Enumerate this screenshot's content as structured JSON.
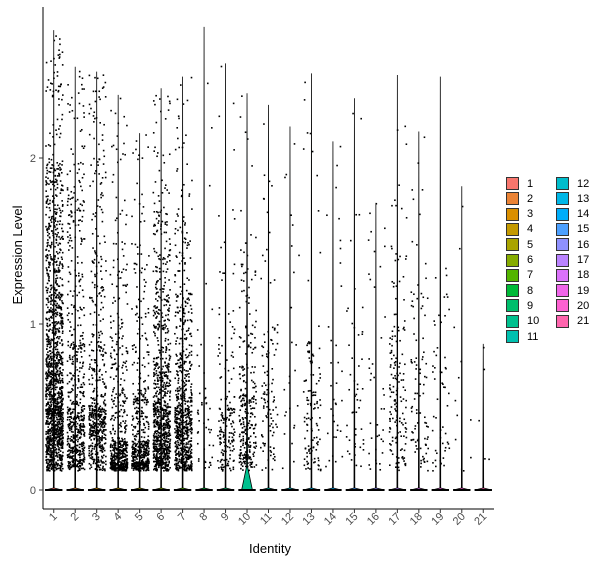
{
  "chart_data": {
    "type": "violin",
    "title": "",
    "xlabel": "Identity",
    "ylabel": "Expression Level",
    "ylim": [
      -0.12,
      2.85
    ],
    "yticks": [
      0,
      1,
      2
    ],
    "categories": [
      "1",
      "2",
      "3",
      "4",
      "5",
      "6",
      "7",
      "8",
      "9",
      "10",
      "11",
      "12",
      "13",
      "14",
      "15",
      "16",
      "17",
      "18",
      "19",
      "20",
      "21"
    ],
    "colors": [
      "#F8766D",
      "#EB8335",
      "#DA8F00",
      "#C49A00",
      "#A9A400",
      "#86AC00",
      "#53B400",
      "#00BA38",
      "#00BE6C",
      "#00C08E",
      "#00C0AF",
      "#00BDCC",
      "#00B7E7",
      "#00ADFA",
      "#4CA0FF",
      "#8F91FF",
      "#BA83FF",
      "#DB72FB",
      "#F066EA",
      "#FD61D1",
      "#FF65AE"
    ],
    "series": [
      {
        "category": "1",
        "max": 2.77,
        "density": [
          [
            0.25,
            0.4
          ],
          [
            0.5,
            1.0
          ],
          [
            0.8,
            0.9
          ],
          [
            1.2,
            0.55
          ],
          [
            1.6,
            0.35
          ],
          [
            2.0,
            0.3
          ],
          [
            2.5,
            0.15
          ]
        ],
        "n_dots": 1500
      },
      {
        "category": "2",
        "max": 2.55,
        "density": [
          [
            0.25,
            0.5
          ],
          [
            0.5,
            0.8
          ],
          [
            0.9,
            0.5
          ],
          [
            1.5,
            0.3
          ],
          [
            2.0,
            0.25
          ],
          [
            2.4,
            0.1
          ]
        ],
        "n_dots": 600
      },
      {
        "category": "3",
        "max": 2.52,
        "density": [
          [
            0.3,
            0.5
          ],
          [
            0.5,
            0.8
          ],
          [
            0.9,
            0.5
          ],
          [
            1.4,
            0.3
          ],
          [
            2.0,
            0.25
          ],
          [
            2.4,
            0.15
          ]
        ],
        "n_dots": 550
      },
      {
        "category": "4",
        "max": 2.38,
        "density": [
          [
            0.15,
            0.6
          ],
          [
            0.3,
            1.0
          ],
          [
            0.6,
            0.5
          ],
          [
            1.0,
            0.3
          ],
          [
            1.5,
            0.2
          ],
          [
            2.2,
            0.1
          ]
        ],
        "n_dots": 550
      },
      {
        "category": "5",
        "max": 2.15,
        "density": [
          [
            0.15,
            0.6
          ],
          [
            0.3,
            1.0
          ],
          [
            0.6,
            0.55
          ],
          [
            1.0,
            0.35
          ],
          [
            1.5,
            0.2
          ],
          [
            2.0,
            0.1
          ]
        ],
        "n_dots": 520
      },
      {
        "category": "6",
        "max": 2.42,
        "density": [
          [
            0.25,
            0.7
          ],
          [
            0.5,
            1.0
          ],
          [
            0.8,
            0.6
          ],
          [
            1.2,
            0.35
          ],
          [
            1.7,
            0.25
          ],
          [
            2.2,
            0.1
          ]
        ],
        "n_dots": 900
      },
      {
        "category": "7",
        "max": 2.49,
        "density": [
          [
            0.25,
            0.7
          ],
          [
            0.5,
            1.0
          ],
          [
            0.8,
            0.6
          ],
          [
            1.2,
            0.35
          ],
          [
            1.7,
            0.2
          ],
          [
            2.2,
            0.1
          ]
        ],
        "n_dots": 750
      },
      {
        "category": "8",
        "max": 2.79,
        "density": [
          [
            0.3,
            0.4
          ],
          [
            0.6,
            0.4
          ],
          [
            1.0,
            0.2
          ],
          [
            1.6,
            0.1
          ]
        ],
        "n_dots": 45
      },
      {
        "category": "9",
        "max": 2.57,
        "density": [
          [
            0.3,
            0.5
          ],
          [
            0.5,
            0.7
          ],
          [
            0.9,
            0.3
          ],
          [
            1.5,
            0.2
          ],
          [
            2.0,
            0.1
          ]
        ],
        "n_dots": 170
      },
      {
        "category": "10",
        "max": 2.39,
        "density": [
          [
            0.3,
            0.6
          ],
          [
            0.6,
            0.8
          ],
          [
            1.0,
            0.4
          ],
          [
            1.5,
            0.2
          ],
          [
            2.0,
            0.1
          ]
        ],
        "n_dots": 280,
        "violin_width": 0.28,
        "violin_top": 0.14
      },
      {
        "category": "11",
        "max": 2.32,
        "density": [
          [
            0.4,
            0.7
          ],
          [
            0.7,
            0.7
          ],
          [
            1.0,
            0.5
          ],
          [
            1.5,
            0.2
          ]
        ],
        "n_dots": 110
      },
      {
        "category": "12",
        "max": 2.19,
        "density": [
          [
            0.5,
            0.4
          ],
          [
            1.0,
            0.3
          ],
          [
            1.5,
            0.2
          ],
          [
            2.0,
            0.1
          ]
        ],
        "n_dots": 25
      },
      {
        "category": "13",
        "max": 2.51,
        "density": [
          [
            0.3,
            0.6
          ],
          [
            0.6,
            0.8
          ],
          [
            0.9,
            0.4
          ],
          [
            1.5,
            0.2
          ]
        ],
        "n_dots": 120
      },
      {
        "category": "14",
        "max": 2.1,
        "density": [
          [
            0.6,
            0.5
          ],
          [
            1.0,
            0.4
          ],
          [
            1.5,
            0.3
          ]
        ],
        "n_dots": 35
      },
      {
        "category": "15",
        "max": 2.36,
        "density": [
          [
            0.4,
            0.5
          ],
          [
            0.8,
            0.4
          ],
          [
            1.4,
            0.3
          ],
          [
            2.0,
            0.1
          ]
        ],
        "n_dots": 50
      },
      {
        "category": "16",
        "max": 1.73,
        "density": [
          [
            0.4,
            0.5
          ],
          [
            0.8,
            0.4
          ],
          [
            1.3,
            0.3
          ]
        ],
        "n_dots": 40
      },
      {
        "category": "17",
        "max": 2.5,
        "density": [
          [
            0.4,
            0.6
          ],
          [
            0.7,
            0.7
          ],
          [
            1.0,
            0.5
          ],
          [
            1.5,
            0.3
          ],
          [
            2.2,
            0.1
          ]
        ],
        "n_dots": 160
      },
      {
        "category": "18",
        "max": 2.16,
        "density": [
          [
            0.4,
            0.6
          ],
          [
            0.8,
            0.5
          ],
          [
            1.2,
            0.4
          ],
          [
            1.8,
            0.2
          ]
        ],
        "n_dots": 95
      },
      {
        "category": "19",
        "max": 2.49,
        "density": [
          [
            0.4,
            0.5
          ],
          [
            0.8,
            0.5
          ],
          [
            1.3,
            0.3
          ],
          [
            2.0,
            0.15
          ]
        ],
        "n_dots": 55
      },
      {
        "category": "20",
        "max": 1.83,
        "density": [
          [
            0.5,
            0.5
          ],
          [
            1.0,
            0.4
          ],
          [
            1.6,
            0.2
          ]
        ],
        "n_dots": 12
      },
      {
        "category": "21",
        "max": 0.88,
        "density": [
          [
            0.2,
            0.5
          ],
          [
            0.4,
            0.5
          ],
          [
            0.7,
            0.3
          ]
        ],
        "n_dots": 5
      }
    ],
    "legend": {
      "placement": "right",
      "columns": 2
    }
  }
}
